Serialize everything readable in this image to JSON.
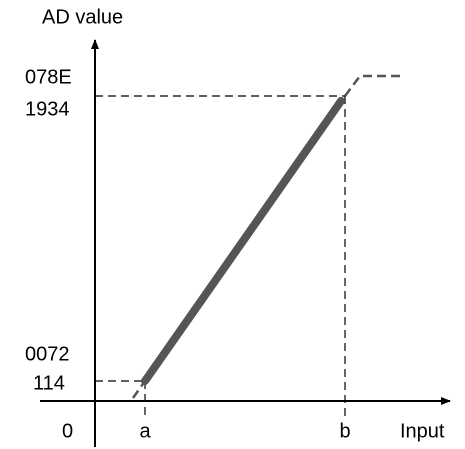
{
  "axes": {
    "y_label": "AD value",
    "x_label": "Input",
    "origin": "0"
  },
  "y_marks": [
    {
      "hex": "078E",
      "dec": "1934"
    },
    {
      "hex": "0072",
      "dec": "114"
    }
  ],
  "x_marks": [
    "a",
    "b"
  ]
}
